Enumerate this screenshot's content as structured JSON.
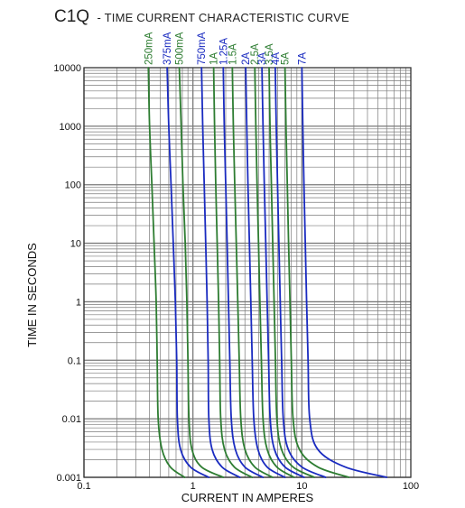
{
  "chart_title": {
    "main": "C1Q",
    "subtitle": "- TIME CURRENT CHARACTERISTIC CURVE"
  },
  "chart_data": {
    "type": "line",
    "title": "C1Q - TIME CURRENT CHARACTERISTIC CURVE",
    "xlabel": "CURRENT IN AMPERES",
    "ylabel": "TIME IN SECONDS",
    "xscale": "log",
    "yscale": "log",
    "xlim": [
      0.1,
      100
    ],
    "ylim": [
      0.001,
      10000
    ],
    "grid": true,
    "x_ticks": [
      "0.1",
      "1",
      "10",
      "100"
    ],
    "y_ticks": [
      "0.001",
      "0.01",
      "0.1",
      "1",
      "10",
      "100",
      "1000",
      "10000"
    ],
    "colors": {
      "green": "#2e7d32",
      "blue": "#1a2bc0",
      "grid": "#7a7a7a"
    },
    "series": [
      {
        "name": "250mA",
        "color": "green",
        "points": [
          [
            0.39,
            10000
          ],
          [
            0.4,
            1000
          ],
          [
            0.42,
            100
          ],
          [
            0.44,
            10
          ],
          [
            0.46,
            1
          ],
          [
            0.47,
            0.1
          ],
          [
            0.48,
            0.01
          ],
          [
            0.52,
            0.003
          ],
          [
            0.62,
            0.0015
          ],
          [
            0.84,
            0.001
          ]
        ]
      },
      {
        "name": "375mA",
        "color": "blue",
        "points": [
          [
            0.58,
            10000
          ],
          [
            0.6,
            1000
          ],
          [
            0.63,
            100
          ],
          [
            0.66,
            10
          ],
          [
            0.69,
            1
          ],
          [
            0.71,
            0.1
          ],
          [
            0.72,
            0.01
          ],
          [
            0.77,
            0.003
          ],
          [
            0.95,
            0.0015
          ],
          [
            1.4,
            0.001
          ]
        ]
      },
      {
        "name": "500mA",
        "color": "green",
        "points": [
          [
            0.75,
            10000
          ],
          [
            0.78,
            1000
          ],
          [
            0.81,
            100
          ],
          [
            0.85,
            10
          ],
          [
            0.88,
            1
          ],
          [
            0.9,
            0.1
          ],
          [
            0.92,
            0.01
          ],
          [
            0.98,
            0.003
          ],
          [
            1.2,
            0.0015
          ],
          [
            1.9,
            0.001
          ]
        ]
      },
      {
        "name": "750mA",
        "color": "blue",
        "points": [
          [
            1.2,
            10000
          ],
          [
            1.23,
            1000
          ],
          [
            1.27,
            100
          ],
          [
            1.31,
            10
          ],
          [
            1.35,
            1
          ],
          [
            1.38,
            0.1
          ],
          [
            1.4,
            0.01
          ],
          [
            1.5,
            0.003
          ],
          [
            1.85,
            0.0015
          ],
          [
            2.7,
            0.001
          ]
        ]
      },
      {
        "name": "1A",
        "color": "green",
        "points": [
          [
            1.55,
            10000
          ],
          [
            1.58,
            1000
          ],
          [
            1.62,
            100
          ],
          [
            1.67,
            10
          ],
          [
            1.72,
            1
          ],
          [
            1.76,
            0.1
          ],
          [
            1.8,
            0.01
          ],
          [
            1.95,
            0.003
          ],
          [
            2.4,
            0.0015
          ],
          [
            3.5,
            0.001
          ]
        ]
      },
      {
        "name": "1.25A",
        "color": "blue",
        "points": [
          [
            1.9,
            10000
          ],
          [
            1.94,
            1000
          ],
          [
            2.0,
            100
          ],
          [
            2.06,
            10
          ],
          [
            2.12,
            1
          ],
          [
            2.18,
            0.1
          ],
          [
            2.25,
            0.01
          ],
          [
            2.45,
            0.003
          ],
          [
            3.0,
            0.0015
          ],
          [
            4.4,
            0.001
          ]
        ]
      },
      {
        "name": "1.5A",
        "color": "green",
        "points": [
          [
            2.3,
            10000
          ],
          [
            2.35,
            1000
          ],
          [
            2.42,
            100
          ],
          [
            2.5,
            10
          ],
          [
            2.58,
            1
          ],
          [
            2.66,
            0.1
          ],
          [
            2.75,
            0.01
          ],
          [
            3.0,
            0.003
          ],
          [
            3.7,
            0.0015
          ],
          [
            5.4,
            0.001
          ]
        ]
      },
      {
        "name": "2A",
        "color": "blue",
        "points": [
          [
            3.05,
            10000
          ],
          [
            3.12,
            1000
          ],
          [
            3.2,
            100
          ],
          [
            3.3,
            10
          ],
          [
            3.4,
            1
          ],
          [
            3.5,
            0.1
          ],
          [
            3.62,
            0.01
          ],
          [
            3.95,
            0.003
          ],
          [
            4.8,
            0.0015
          ],
          [
            7.0,
            0.001
          ]
        ]
      },
      {
        "name": "2.5A",
        "color": "green",
        "points": [
          [
            3.7,
            10000
          ],
          [
            3.78,
            1000
          ],
          [
            3.88,
            100
          ],
          [
            4.0,
            10
          ],
          [
            4.12,
            1
          ],
          [
            4.25,
            0.1
          ],
          [
            4.4,
            0.01
          ],
          [
            4.8,
            0.003
          ],
          [
            5.9,
            0.0015
          ],
          [
            8.5,
            0.001
          ]
        ]
      },
      {
        "name": "3A",
        "color": "blue",
        "points": [
          [
            4.3,
            10000
          ],
          [
            4.4,
            1000
          ],
          [
            4.52,
            100
          ],
          [
            4.66,
            10
          ],
          [
            4.8,
            1
          ],
          [
            4.95,
            0.1
          ],
          [
            5.12,
            0.01
          ],
          [
            5.6,
            0.003
          ],
          [
            7.0,
            0.0015
          ],
          [
            10.5,
            0.001
          ]
        ]
      },
      {
        "name": "3.5A",
        "color": "green",
        "points": [
          [
            5.0,
            10000
          ],
          [
            5.1,
            1000
          ],
          [
            5.25,
            100
          ],
          [
            5.4,
            10
          ],
          [
            5.56,
            1
          ],
          [
            5.72,
            0.1
          ],
          [
            5.9,
            0.01
          ],
          [
            6.5,
            0.003
          ],
          [
            8.3,
            0.0015
          ],
          [
            13.0,
            0.001
          ]
        ]
      },
      {
        "name": "4A",
        "color": "blue",
        "points": [
          [
            5.7,
            10000
          ],
          [
            5.82,
            1000
          ],
          [
            5.98,
            100
          ],
          [
            6.15,
            10
          ],
          [
            6.33,
            1
          ],
          [
            6.52,
            0.1
          ],
          [
            6.75,
            0.01
          ],
          [
            7.5,
            0.003
          ],
          [
            10.0,
            0.0015
          ],
          [
            16.5,
            0.001
          ]
        ]
      },
      {
        "name": "5A",
        "color": "green",
        "points": [
          [
            7.0,
            10000
          ],
          [
            7.15,
            1000
          ],
          [
            7.35,
            100
          ],
          [
            7.55,
            10
          ],
          [
            7.78,
            1
          ],
          [
            8.0,
            0.1
          ],
          [
            8.3,
            0.01
          ],
          [
            9.5,
            0.003
          ],
          [
            14.0,
            0.0015
          ],
          [
            27.0,
            0.001
          ]
        ]
      },
      {
        "name": "7A",
        "color": "blue",
        "points": [
          [
            10.0,
            10000
          ],
          [
            10.2,
            1000
          ],
          [
            10.45,
            100
          ],
          [
            10.75,
            10
          ],
          [
            11.05,
            1
          ],
          [
            11.4,
            0.1
          ],
          [
            11.8,
            0.01
          ],
          [
            14.0,
            0.003
          ],
          [
            25.0,
            0.0015
          ],
          [
            60.0,
            0.001
          ]
        ]
      }
    ]
  }
}
